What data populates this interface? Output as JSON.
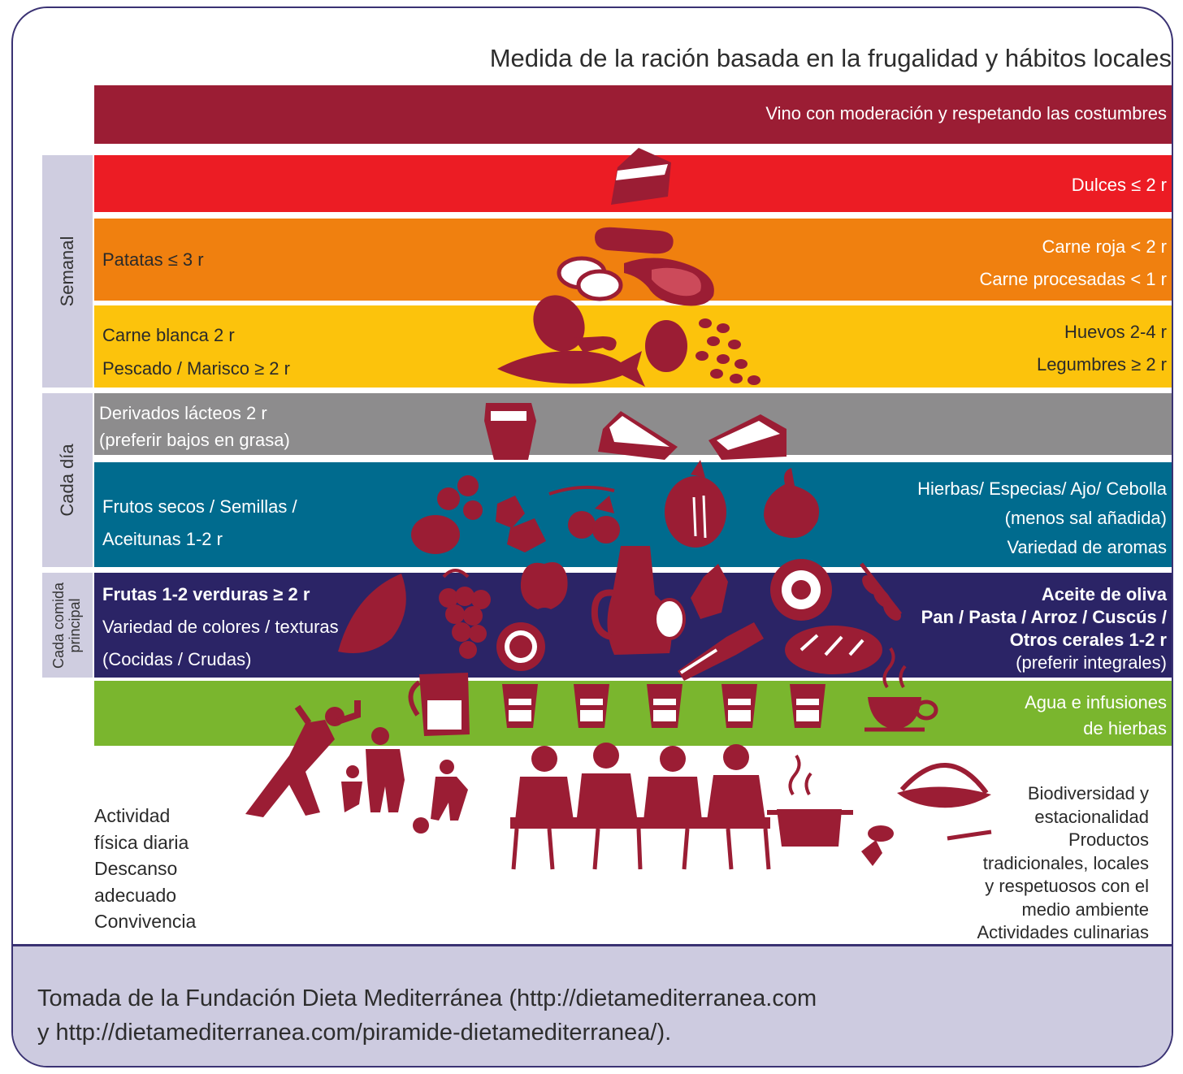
{
  "title": "Medida de la ración  basada en la frugalidad y hábitos locales",
  "bands": {
    "wine": {
      "color": "#9b1d34",
      "right": "Vino con moderación y respetando las costumbres"
    },
    "sweets": {
      "color": "#ec1c24",
      "right": "Dulces ≤ 2 r"
    },
    "meat": {
      "color": "#f0800f",
      "left": "Patatas ≤ 3 r",
      "right1": "Carne roja < 2 r",
      "right2": "Carne procesadas < 1 r"
    },
    "poultry": {
      "color": "#fcc30c",
      "left1": "Carne blanca 2 r",
      "left2": "Pescado / Marisco ≥ 2 r",
      "right1": "Huevos  2-4 r",
      "right2": "Legumbres ≥ 2 r"
    },
    "dairy": {
      "color": "#8d8c8d",
      "left1": "Derivados lácteos 2 r",
      "left2": "(preferir bajos en grasa)"
    },
    "nuts": {
      "color": "#006b8e",
      "left1": "Frutos secos / Semillas /",
      "left2": "Aceitunas 1-2 r",
      "right1": "Hierbas/ Especias/ Ajo/ Cebolla",
      "right2": "(menos sal añadida)",
      "right3": "Variedad de aromas"
    },
    "meal": {
      "color": "#2b2466",
      "left1": "Frutas 1-2 verduras ≥ 2 r",
      "left2": "Variedad de colores / texturas",
      "left3": "(Cocidas / Crudas)",
      "right1": "Aceite de oliva",
      "right2": "Pan / Pasta / Arroz / Cuscús /",
      "right3": "Otros cerales 1-2 r",
      "right4": "(preferir integrales)"
    },
    "water": {
      "color": "#7ab62e",
      "right1": "Agua e infusiones",
      "right2": "de hierbas"
    }
  },
  "side_labels": {
    "weekly": "Semanal",
    "daily": "Cada día",
    "meal1": "Cada comida",
    "meal2": "principal"
  },
  "bottom_left": [
    "Actividad",
    "física diaria",
    "Descanso",
    "adecuado",
    "Convivencia"
  ],
  "bottom_right": [
    "Biodiversidad y",
    "estacionalidad",
    "Productos",
    "tradicionales, locales",
    "y respetuosos con el",
    "medio ambiente",
    "Actividades culinarias"
  ],
  "footer": {
    "line1": "Tomada de la Fundación Dieta Mediterránea (http://dietamediterranea.com",
    "line2": "y http://dietamediterranea.com/piramide-dietamediterranea/)."
  },
  "icon_color": "#9b1d34"
}
